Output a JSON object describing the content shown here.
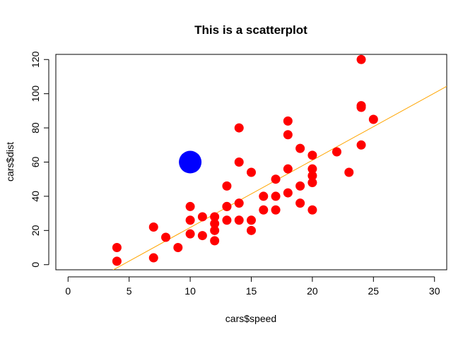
{
  "chart_data": {
    "type": "scatter",
    "title": "This is a scatterplot",
    "xlabel": "cars$speed",
    "ylabel": "cars$dist",
    "xlim": [
      -1,
      31
    ],
    "ylim": [
      -3,
      123
    ],
    "xticks": [
      0,
      5,
      10,
      15,
      20,
      25,
      30
    ],
    "yticks": [
      0,
      20,
      40,
      60,
      80,
      100,
      120
    ],
    "grid": false,
    "legend": "none",
    "series": [
      {
        "color": "#ff0000",
        "marker": "filled-circle",
        "points": [
          [
            4,
            2
          ],
          [
            4,
            10
          ],
          [
            7,
            4
          ],
          [
            7,
            22
          ],
          [
            8,
            16
          ],
          [
            9,
            10
          ],
          [
            10,
            18
          ],
          [
            10,
            26
          ],
          [
            10,
            34
          ],
          [
            11,
            17
          ],
          [
            11,
            28
          ],
          [
            12,
            14
          ],
          [
            12,
            20
          ],
          [
            12,
            24
          ],
          [
            12,
            28
          ],
          [
            13,
            26
          ],
          [
            13,
            34
          ],
          [
            13,
            34
          ],
          [
            13,
            46
          ],
          [
            14,
            26
          ],
          [
            14,
            36
          ],
          [
            14,
            60
          ],
          [
            14,
            80
          ],
          [
            15,
            20
          ],
          [
            15,
            26
          ],
          [
            15,
            54
          ],
          [
            16,
            32
          ],
          [
            16,
            40
          ],
          [
            17,
            32
          ],
          [
            17,
            40
          ],
          [
            17,
            50
          ],
          [
            18,
            42
          ],
          [
            18,
            56
          ],
          [
            18,
            76
          ],
          [
            18,
            84
          ],
          [
            19,
            36
          ],
          [
            19,
            46
          ],
          [
            19,
            68
          ],
          [
            20,
            32
          ],
          [
            20,
            48
          ],
          [
            20,
            52
          ],
          [
            20,
            56
          ],
          [
            20,
            64
          ],
          [
            22,
            66
          ],
          [
            23,
            54
          ],
          [
            24,
            70
          ],
          [
            24,
            92
          ],
          [
            24,
            93
          ],
          [
            24,
            120
          ],
          [
            25,
            85
          ]
        ]
      },
      {
        "color": "#0000ff",
        "marker": "large-filled-circle",
        "points": [
          [
            10,
            60
          ]
        ]
      }
    ],
    "fit_line": {
      "color": "#ffa500",
      "intercept": -17.579,
      "slope": 3.932
    }
  }
}
